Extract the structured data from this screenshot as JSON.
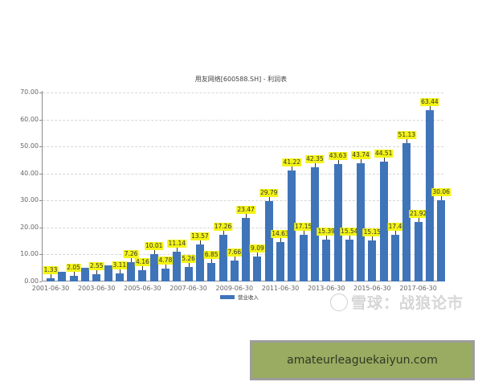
{
  "chart_data": {
    "type": "bar",
    "title": "用友网络[600588.SH] - 利润表",
    "xlabel": "",
    "ylabel": "",
    "ylim": [
      0,
      70
    ],
    "yticks": [
      "0.00",
      "10.00",
      "20.00",
      "30.00",
      "40.00",
      "50.00",
      "60.00",
      "70.00"
    ],
    "grid": true,
    "legend_position": "bottom-center",
    "xtick_labels": [
      "2001-06-30",
      "2003-06-30",
      "2005-06-30",
      "2007-06-30",
      "2009-06-30",
      "2011-06-30",
      "2013-06-30",
      "2015-06-30",
      "2017-06-30"
    ],
    "categories": [
      "2001-06-30",
      "2001-12-31",
      "2002-06-30",
      "2002-12-31",
      "2003-06-30",
      "2003-12-31",
      "2004-06-30",
      "2004-12-31",
      "2005-06-30",
      "2005-12-31",
      "2006-06-30",
      "2006-12-31",
      "2007-06-30",
      "2007-12-31",
      "2008-06-30",
      "2008-12-31",
      "2009-06-30",
      "2009-12-31",
      "2010-06-30",
      "2010-12-31",
      "2011-06-30",
      "2011-12-31",
      "2012-06-30",
      "2012-12-31",
      "2013-06-30",
      "2013-12-31",
      "2014-06-30",
      "2014-12-31",
      "2015-06-30",
      "2015-12-31",
      "2016-06-30",
      "2016-12-31",
      "2017-06-30",
      "2017-12-31",
      "2018-06-30"
    ],
    "series": [
      {
        "name": "营业收入",
        "color": "#3f74b9",
        "values": [
          1.33,
          3.6,
          2.05,
          5.0,
          2.55,
          6.0,
          3.11,
          7.26,
          4.16,
          10.01,
          4.78,
          11.14,
          5.26,
          13.57,
          6.85,
          17.26,
          7.66,
          23.47,
          9.09,
          29.79,
          14.63,
          41.22,
          17.15,
          42.35,
          15.39,
          43.63,
          15.54,
          43.74,
          15.15,
          44.51,
          17.4,
          51.13,
          21.92,
          63.44,
          30.06
        ],
        "labels": [
          "1.33",
          "",
          "2.05",
          "",
          "2.55",
          "",
          "3.11",
          "7.26",
          "4.16",
          "10.01",
          "4.78",
          "11.14",
          "5.26",
          "13.57",
          "6.85",
          "17.26",
          "7.66",
          "23.47",
          "9.09",
          "29.79",
          "14.63",
          "41.22",
          "17.15",
          "42.35",
          "15.39",
          "43.63",
          "15.54",
          "43.74",
          "15.15",
          "44.51",
          "17.4",
          "51.13",
          "21.92",
          "63.44",
          "30.06"
        ]
      }
    ]
  },
  "legend": {
    "label": "营业收入",
    "color": "#3f74b9"
  },
  "watermark": {
    "text": "雪球：战狼论市"
  },
  "banner": {
    "text": "amateurleaguekaiyun.com"
  },
  "colors": {
    "bar": "#3f74b9",
    "label_bg": "#f3f317",
    "banner_bg": "#9aab62",
    "banner_border": "#9d9d9d"
  }
}
